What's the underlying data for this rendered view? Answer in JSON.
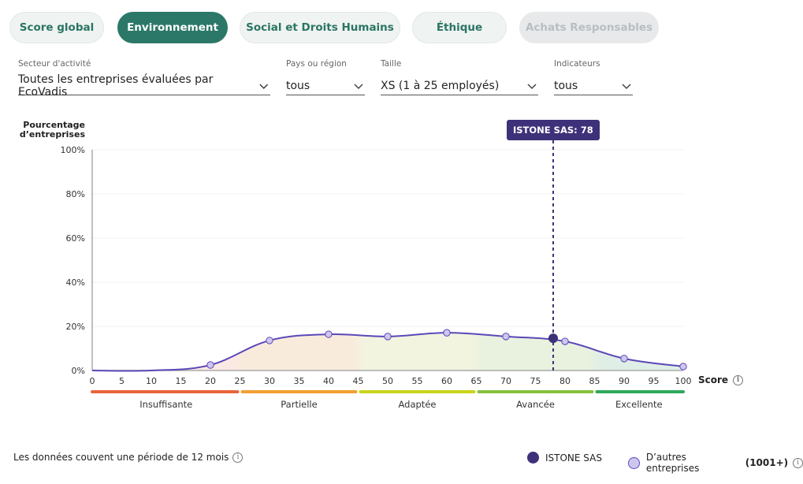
{
  "tabs": [
    {
      "label": "Score global",
      "state": "default"
    },
    {
      "label": "Environnement",
      "state": "active"
    },
    {
      "label": "Social et Droits Humains",
      "state": "default"
    },
    {
      "label": "Éthique",
      "state": "default"
    },
    {
      "label": "Achats Responsables",
      "state": "disabled"
    }
  ],
  "filters": [
    {
      "label": "Secteur d'activité",
      "value": "Toutes les entreprises évaluées par EcoVadis"
    },
    {
      "label": "Pays ou région",
      "value": "tous"
    },
    {
      "label": "Taille",
      "value": "XS (1 à 25 employés)"
    },
    {
      "label": "Indicateurs",
      "value": "tous"
    }
  ],
  "chart_data": {
    "type": "area",
    "ylabel": "Pourcentage d’entreprises",
    "xlabel": "Score",
    "xlim": [
      0,
      100
    ],
    "ylim": [
      0,
      100
    ],
    "x_ticks": [
      0,
      5,
      10,
      15,
      20,
      25,
      30,
      35,
      40,
      45,
      50,
      55,
      60,
      65,
      70,
      75,
      80,
      85,
      90,
      95,
      100
    ],
    "y_ticks": [
      0,
      20,
      40,
      60,
      80,
      100
    ],
    "y_tick_labels": [
      "0%",
      "20%",
      "40%",
      "60%",
      "80%",
      "100%"
    ],
    "grid": true,
    "series": [
      {
        "name": "D’autres entreprises",
        "x": [
          0,
          10,
          20,
          30,
          40,
          50,
          60,
          70,
          80,
          90,
          100
        ],
        "values": [
          0,
          0,
          2.5,
          13.6,
          16.4,
          15.4,
          17.1,
          15.4,
          13.2,
          5.4,
          1.8
        ],
        "marker_at": [
          20,
          30,
          40,
          50,
          60,
          70,
          80,
          90,
          100
        ],
        "color": "#5b48b8",
        "marker_fill": "#cfc6ee"
      }
    ],
    "highlight": {
      "name": "ISTONE SAS",
      "x": 78,
      "y": 14.6,
      "label": "ISTONE SAS: 78",
      "color": "#3e3179"
    },
    "bands": [
      {
        "label": "Insuffisante",
        "from": 0,
        "to": 25,
        "color": "#e8643c",
        "fill": "#fbe9e3"
      },
      {
        "label": "Partielle",
        "from": 25,
        "to": 45,
        "color": "#f0a030",
        "fill": "#f9ebdc"
      },
      {
        "label": "Adaptée",
        "from": 45,
        "to": 65,
        "color": "#c9d41a",
        "fill": "#f2f4df"
      },
      {
        "label": "Avancée",
        "from": 65,
        "to": 85,
        "color": "#86c23c",
        "fill": "#e8f2df"
      },
      {
        "label": "Excellente",
        "from": 85,
        "to": 100,
        "color": "#2ea85a",
        "fill": "#e0efe6"
      }
    ]
  },
  "footer": {
    "note": "Les données couvent une période de 12 mois",
    "legend": [
      {
        "label": "ISTONE SAS",
        "color": "#3e3179"
      },
      {
        "label": "D’autres entreprises",
        "count": "(1001+)",
        "color": "#cfc6ee"
      }
    ]
  }
}
